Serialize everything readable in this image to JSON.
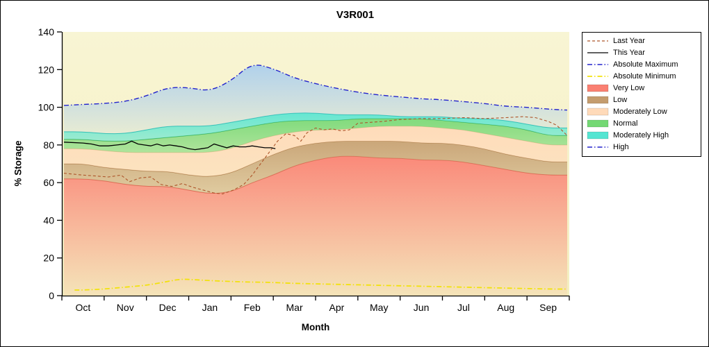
{
  "title": "V3R001",
  "axes": {
    "xlabel": "Month",
    "ylabel": "% Storage",
    "ylim": [
      0,
      140
    ],
    "yticks": [
      0,
      20,
      40,
      60,
      80,
      100,
      120,
      140
    ],
    "months": [
      "Oct",
      "Nov",
      "Dec",
      "Jan",
      "Feb",
      "Mar",
      "Apr",
      "May",
      "Jun",
      "Jul",
      "Aug",
      "Sep"
    ]
  },
  "chart_data": {
    "type": "area",
    "title": "V3R001",
    "xlabel": "Month",
    "ylabel": "% Storage",
    "x_unit": "month index, 0 = Oct ... 11 = Sep (water year)",
    "ylim": [
      0,
      140
    ],
    "grid": false,
    "background_color_top": "#FEFCEC",
    "background_color_bottom": "#F4EFC0",
    "band_x": [
      -0.45,
      0,
      0.5,
      1,
      1.5,
      2,
      2.5,
      3,
      3.5,
      4,
      4.5,
      5,
      5.5,
      6,
      6.5,
      7,
      7.5,
      8,
      8.5,
      9,
      9.5,
      10,
      10.5,
      11,
      11.45
    ],
    "bands": [
      {
        "name": "Very Low",
        "color": "#FA8072",
        "stroke": "#E2614F",
        "grad_top": 0.92,
        "grad_bottom": 0.1,
        "top": [
          62,
          62,
          61,
          59,
          58,
          58,
          56,
          54,
          55,
          60,
          64,
          69,
          72,
          74,
          74,
          73,
          73,
          72,
          72,
          71,
          69,
          67,
          65,
          64,
          64
        ]
      },
      {
        "name": "Low",
        "color": "#C49C6E",
        "stroke": "#A87A45",
        "grad_top": 0.88,
        "grad_bottom": 0.45,
        "top": [
          70,
          70,
          68,
          67,
          66,
          66,
          64,
          63,
          65,
          70,
          75,
          79,
          81,
          82,
          82,
          82,
          82,
          81,
          81,
          80,
          78,
          75,
          73,
          71,
          71
        ]
      },
      {
        "name": "Moderately Low",
        "color": "#FFDAB9",
        "stroke": "#ECC096",
        "grad_top": 0.95,
        "grad_bottom": 0.6,
        "top": [
          78,
          78,
          77,
          76,
          76,
          76,
          76,
          76,
          78,
          82,
          85,
          87,
          88,
          88,
          89,
          90,
          90,
          90,
          89,
          88,
          86,
          84,
          82,
          80,
          80
        ]
      },
      {
        "name": "Normal",
        "color": "#74D874",
        "stroke": "#3FA94A",
        "grad_top": 0.9,
        "grad_bottom": 0.55,
        "top": [
          83,
          83,
          82,
          82,
          83,
          84,
          85,
          86,
          88,
          90,
          92,
          93,
          93,
          93,
          94,
          94,
          94,
          94,
          93,
          92,
          91,
          90,
          88,
          85,
          85
        ]
      },
      {
        "name": "Moderately High",
        "color": "#55E5D2",
        "stroke": "#27BFB0",
        "grad_top": 0.9,
        "grad_bottom": 0.55,
        "top": [
          87,
          87,
          86,
          86,
          88,
          90,
          90,
          90,
          92,
          94,
          96,
          97,
          97,
          96,
          96,
          96,
          95,
          95,
          95,
          94,
          94,
          93,
          91,
          89,
          89
        ]
      },
      {
        "name": "High",
        "color": "#A9CDEE",
        "stroke": null,
        "grad_top": 0.9,
        "grad_bottom": 0.2,
        "top": [
          101,
          101.5,
          102,
          103,
          106,
          110.5,
          110.5,
          108.5,
          114,
          123.5,
          120.5,
          115.5,
          112.5,
          110,
          108,
          106.5,
          105.5,
          104.5,
          104,
          103,
          102,
          100.5,
          100,
          99,
          98.5
        ]
      }
    ],
    "lines": [
      {
        "name": "Absolute Minimum",
        "color": "#F2E20C",
        "width": 1.8,
        "dash": "7 3 1.5 3",
        "smooth": true,
        "x": [
          -0.2,
          0,
          0.5,
          1,
          1.5,
          2,
          2.3,
          2.6,
          3,
          3.5,
          4,
          4.5,
          5,
          6,
          7,
          8,
          9,
          10,
          11,
          11.45
        ],
        "y": [
          3,
          3,
          3.5,
          4.5,
          5.5,
          7.5,
          8.8,
          8.5,
          8,
          7.5,
          7.2,
          7,
          6.5,
          6,
          5.5,
          5,
          4.5,
          4,
          3.5,
          3.5
        ]
      },
      {
        "name": "Last Year",
        "color": "#AD5429",
        "width": 1.1,
        "dash": "4 3",
        "smooth": false,
        "x": [
          -0.45,
          0,
          0.3,
          0.6,
          0.9,
          1.1,
          1.35,
          1.6,
          1.85,
          2.1,
          2.35,
          2.6,
          2.85,
          3.1,
          3.3,
          3.55,
          3.8,
          4.0,
          4.2,
          4.4,
          4.6,
          4.8,
          5.0,
          5.15,
          5.3,
          5.5,
          5.7,
          5.9,
          6.1,
          6.3,
          6.5,
          6.8,
          7.1,
          7.5,
          8,
          8.5,
          9,
          9.5,
          10,
          10.4,
          10.7,
          11,
          11.2,
          11.45
        ],
        "y": [
          65,
          64,
          63.5,
          63,
          64,
          60.5,
          62.5,
          63,
          59,
          58,
          59.5,
          57.5,
          56,
          54.5,
          54,
          56,
          59,
          64,
          70,
          76,
          82,
          86,
          85,
          82,
          86.5,
          89,
          88,
          88.5,
          87.5,
          88,
          91.5,
          92,
          92.5,
          93.5,
          94,
          94,
          94.5,
          94,
          94.5,
          95,
          94.5,
          92.5,
          90.5,
          85
        ]
      },
      {
        "name": "This Year",
        "color": "#000000",
        "width": 1.3,
        "dash": "",
        "smooth": false,
        "x": [
          -0.45,
          0,
          0.2,
          0.4,
          0.6,
          0.8,
          1.0,
          1.15,
          1.3,
          1.45,
          1.6,
          1.75,
          1.9,
          2.05,
          2.2,
          2.35,
          2.5,
          2.65,
          2.8,
          2.95,
          3.1,
          3.25,
          3.4,
          3.55,
          3.7,
          3.85,
          4.0,
          4.15,
          4.3,
          4.45,
          4.55
        ],
        "y": [
          81.5,
          81,
          80.5,
          79.5,
          79.5,
          80,
          80.5,
          82,
          80.5,
          80,
          79.5,
          80.5,
          79.5,
          80,
          79.5,
          79,
          78,
          77.5,
          78,
          78.5,
          80.5,
          79.5,
          78.5,
          79.5,
          79,
          79,
          79.5,
          79,
          78.5,
          78.5,
          78
        ]
      },
      {
        "name": "Absolute Maximum",
        "color": "#2222CC",
        "width": 1.4,
        "dash": "7 3 1.5 3",
        "smooth": true,
        "x": [
          -0.45,
          0,
          0.5,
          1,
          1.5,
          2,
          2.5,
          3,
          3.5,
          4,
          4.5,
          5,
          5.5,
          6,
          6.5,
          7,
          7.5,
          8,
          8.5,
          9,
          9.5,
          10,
          10.5,
          11,
          11.45
        ],
        "y": [
          101,
          101.5,
          102,
          103,
          106,
          110.5,
          110.5,
          108.5,
          114,
          123.5,
          120.5,
          115.5,
          112.5,
          110,
          108,
          106.5,
          105.5,
          104.5,
          104,
          103,
          102,
          100.5,
          100,
          99,
          98.5
        ]
      }
    ],
    "legend": {
      "position": "outside-top-right",
      "entries": [
        {
          "label": "Last Year",
          "type": "line",
          "color": "#AD5429",
          "dash": "4 3",
          "width": 1.2
        },
        {
          "label": "This Year",
          "type": "line",
          "color": "#000000",
          "dash": "",
          "width": 1.3
        },
        {
          "label": "Absolute Maximum",
          "type": "line",
          "color": "#2222CC",
          "dash": "7 3 1.5 3",
          "width": 1.4
        },
        {
          "label": "Absolute Minimum",
          "type": "line",
          "color": "#F2E20C",
          "dash": "7 3 1.5 3",
          "width": 1.8
        },
        {
          "label": "Very Low",
          "type": "fill",
          "color": "#FA8072"
        },
        {
          "label": "Low",
          "type": "fill",
          "color": "#C49C6E"
        },
        {
          "label": "Moderately Low",
          "type": "fill",
          "color": "#FFDAB9"
        },
        {
          "label": "Normal",
          "type": "fill",
          "color": "#74D874"
        },
        {
          "label": "Moderately High",
          "type": "fill",
          "color": "#55E5D2"
        },
        {
          "label": "High",
          "type": "line",
          "color": "#2222CC",
          "dash": "7 3 1.5 3",
          "width": 1.4
        }
      ]
    }
  }
}
